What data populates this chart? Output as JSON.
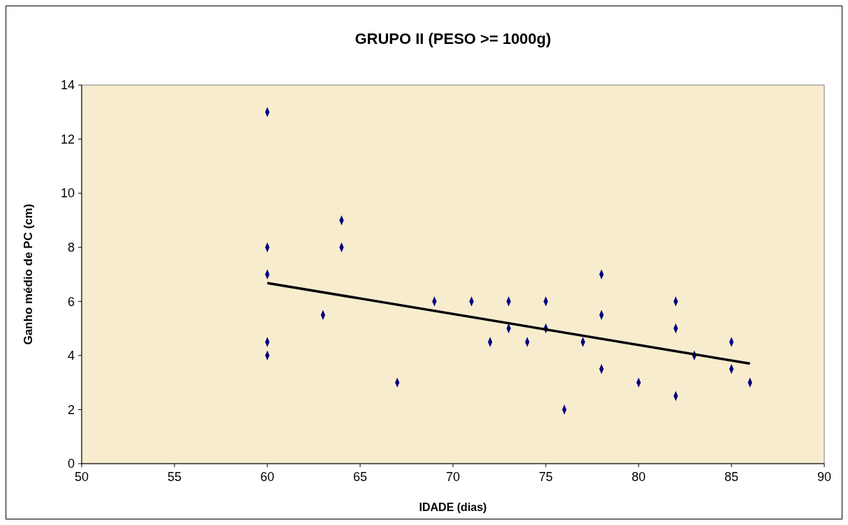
{
  "chart_data": {
    "type": "scatter",
    "title": "GRUPO II (PESO >= 1000g)",
    "xlabel": "IDADE (dias)",
    "ylabel": "Ganho médio de PC (cm)",
    "xlim": [
      50,
      90
    ],
    "xticks": [
      50,
      55,
      60,
      65,
      70,
      75,
      80,
      85,
      90
    ],
    "ylim": [
      0,
      14
    ],
    "yticks": [
      0,
      2,
      4,
      6,
      8,
      10,
      12,
      14
    ],
    "grid": false,
    "series": [
      {
        "marker": "diamond",
        "color": "#000080",
        "x": [
          60,
          60,
          60,
          60,
          60,
          63,
          64,
          64,
          67,
          69,
          71,
          72,
          73,
          73,
          74,
          75,
          75,
          76,
          77,
          78,
          78,
          78,
          80,
          82,
          82,
          82,
          83,
          85,
          85,
          86
        ],
        "values": [
          13,
          8,
          7,
          4.5,
          4,
          5.5,
          9,
          8,
          3,
          6,
          6,
          4.5,
          6,
          5,
          4.5,
          6,
          5,
          2,
          4.5,
          7,
          5.5,
          3.5,
          3,
          6,
          5,
          2.5,
          4,
          4.5,
          3.5,
          3
        ]
      },
      {
        "type": "line",
        "color": "#000000",
        "x": [
          60,
          86
        ],
        "values": [
          6.68,
          3.7
        ]
      }
    ]
  }
}
